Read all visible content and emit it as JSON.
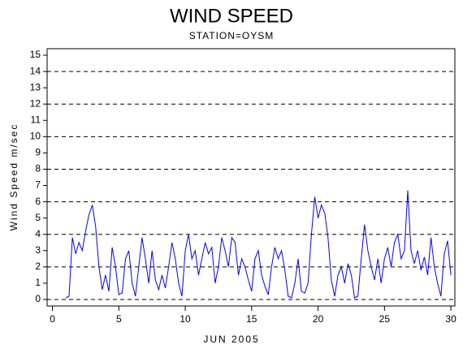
{
  "chart_data": {
    "type": "line",
    "title": "WIND SPEED",
    "subtitle": "STATION=OYSM",
    "x_label": "JUN 2005",
    "y_label": "Wind Speed m/sec",
    "x": [
      1,
      1.25,
      1.5,
      1.75,
      2,
      2.25,
      2.5,
      2.75,
      3,
      3.25,
      3.5,
      3.75,
      4,
      4.25,
      4.5,
      4.75,
      5,
      5.25,
      5.5,
      5.75,
      6,
      6.25,
      6.5,
      6.75,
      7,
      7.25,
      7.5,
      7.75,
      8,
      8.25,
      8.5,
      8.75,
      9,
      9.25,
      9.5,
      9.75,
      10,
      10.25,
      10.5,
      10.75,
      11,
      11.25,
      11.5,
      11.75,
      12,
      12.25,
      12.5,
      12.75,
      13,
      13.25,
      13.5,
      13.75,
      14,
      14.25,
      14.5,
      14.75,
      15,
      15.25,
      15.5,
      15.75,
      16,
      16.25,
      16.5,
      16.75,
      17,
      17.25,
      17.5,
      17.75,
      18,
      18.25,
      18.5,
      18.75,
      19,
      19.25,
      19.5,
      19.75,
      20,
      20.25,
      20.5,
      20.75,
      21,
      21.25,
      21.5,
      21.75,
      22,
      22.25,
      22.5,
      22.75,
      23,
      23.25,
      23.5,
      23.75,
      24,
      24.25,
      24.5,
      24.75,
      25,
      25.25,
      25.5,
      25.75,
      26,
      26.25,
      26.5,
      26.75,
      27,
      27.25,
      27.5,
      27.75,
      28,
      28.25,
      28.5,
      28.75,
      29,
      29.25,
      29.5,
      29.75,
      30
    ],
    "series": [
      {
        "name": "Wind Speed",
        "color": "#0000ff",
        "values": [
          0.1,
          0.2,
          3.8,
          2.8,
          3.5,
          3.0,
          4.2,
          5.2,
          5.8,
          4.5,
          2.0,
          0.6,
          1.5,
          0.5,
          3.2,
          2.0,
          0.3,
          0.4,
          2.5,
          3.0,
          1.0,
          0.2,
          2.0,
          3.8,
          2.5,
          1.0,
          3.0,
          1.2,
          0.6,
          1.5,
          0.7,
          2.0,
          3.5,
          2.5,
          1.0,
          0.2,
          3.0,
          4.0,
          2.5,
          3.0,
          1.5,
          2.5,
          3.5,
          2.8,
          3.2,
          1.0,
          2.0,
          3.8,
          3.0,
          2.0,
          3.8,
          3.5,
          1.5,
          2.5,
          2.0,
          1.2,
          0.5,
          2.5,
          3.0,
          1.5,
          0.8,
          0.3,
          2.0,
          3.2,
          2.5,
          3.0,
          1.8,
          0.2,
          0.1,
          1.0,
          2.5,
          0.5,
          0.4,
          1.0,
          4.0,
          6.3,
          5.0,
          5.8,
          5.3,
          3.8,
          1.2,
          0.2,
          1.5,
          2.0,
          1.0,
          2.2,
          1.5,
          0.1,
          0.2,
          2.5,
          4.6,
          3.0,
          2.0,
          1.2,
          2.5,
          1.0,
          2.5,
          3.2,
          2.0,
          3.5,
          4.0,
          2.5,
          3.0,
          6.7,
          3.0,
          2.2,
          3.0,
          1.8,
          2.6,
          1.5,
          3.8,
          2.0,
          1.0,
          0.2,
          2.8,
          3.6,
          1.5
        ]
      }
    ],
    "xlim": [
      -0.4,
      30.3
    ],
    "xticks": [
      0,
      5,
      10,
      15,
      20,
      25,
      30
    ],
    "ylim": [
      -0.4,
      15.4
    ],
    "yticks": [
      0,
      1,
      2,
      3,
      4,
      5,
      6,
      7,
      8,
      9,
      10,
      11,
      12,
      13,
      14,
      15
    ],
    "grid": true
  }
}
